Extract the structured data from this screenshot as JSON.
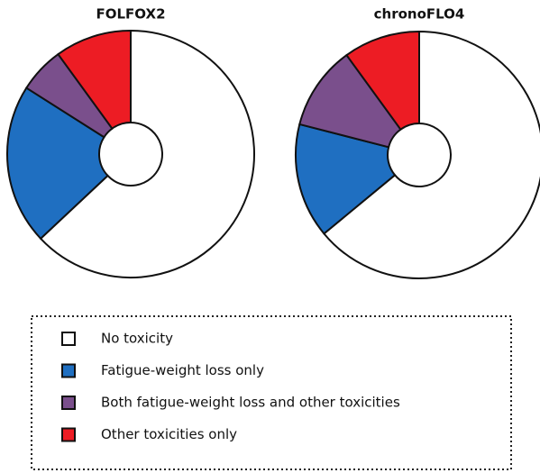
{
  "chart_data": [
    {
      "type": "pie",
      "title": "FOLFOX2",
      "values": [
        63,
        21,
        6,
        10
      ]
    },
    {
      "type": "pie",
      "title": "chronoFLO4",
      "values": [
        64,
        15,
        11,
        10
      ]
    }
  ],
  "legend": {
    "labels": [
      "No toxicity",
      "Fatigue-weight loss only",
      "Both fatigue-weight loss and other toxicities",
      "Other toxicities only"
    ],
    "colors": [
      "#ffffff",
      "#1f6fc1",
      "#7a4f8c",
      "#ed1c24"
    ]
  }
}
